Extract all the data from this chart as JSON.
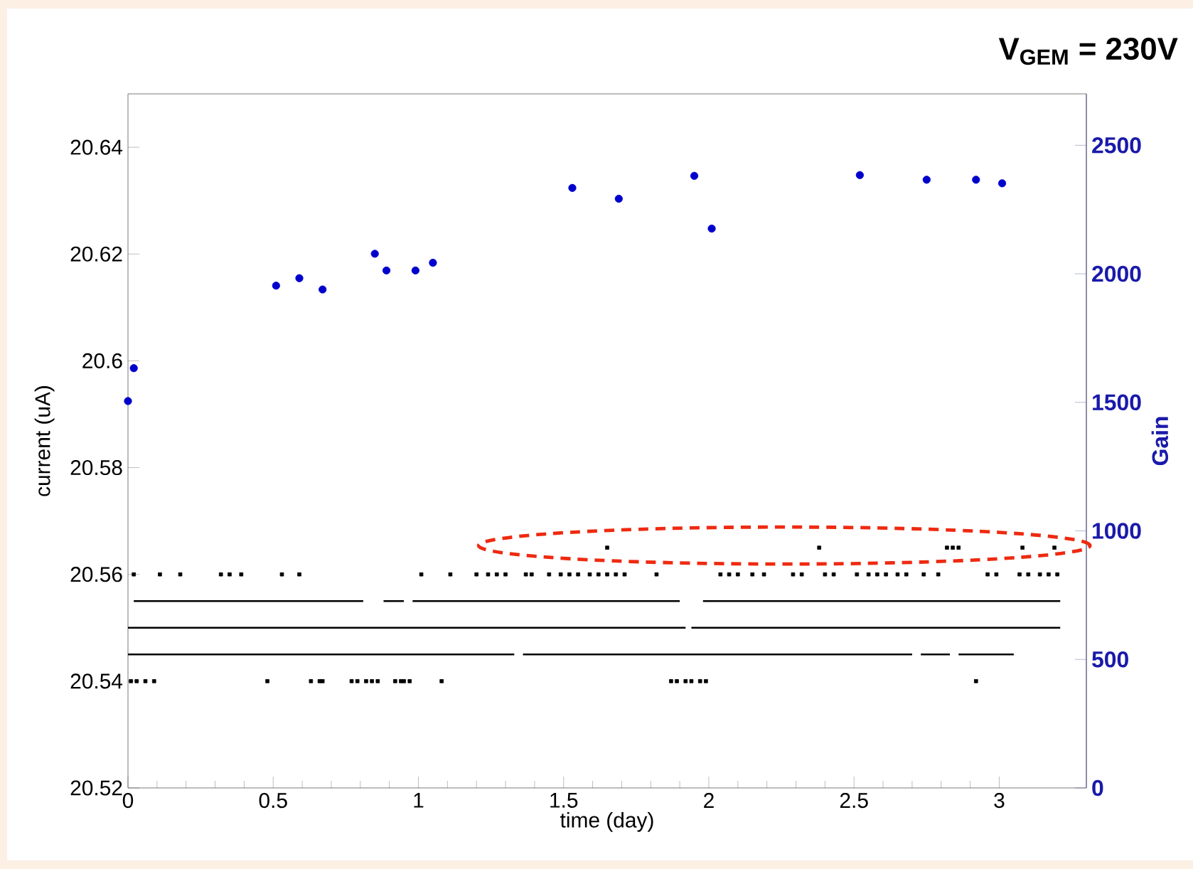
{
  "chart_data": {
    "type": "scatter",
    "title": "V$_{GEM}$ = 230V",
    "xlabel": "time (day)",
    "ylabel": "current (uA)",
    "y2label": "Gain",
    "xlim": [
      0,
      3.3
    ],
    "xticks": [
      0,
      0.5,
      1,
      1.5,
      2,
      2.5,
      3
    ],
    "ylim": [
      20.52,
      20.65
    ],
    "yticks": [
      20.52,
      20.54,
      20.56,
      20.58,
      20.6,
      20.62,
      20.64
    ],
    "y2lim": [
      0,
      2700
    ],
    "y2ticks": [
      0,
      500,
      1000,
      1500,
      2000,
      2500
    ],
    "series": [
      {
        "type": "line",
        "color": "#000000",
        "line_style": "solid",
        "marker": "none",
        "x": [
          0.02,
          0.81,
          0.84,
          0.88,
          0.95,
          0.96,
          0.98,
          1.9,
          1.94,
          1.98,
          3.21
        ],
        "values": [
          20.555,
          20.555,
          null,
          20.555,
          20.555,
          null,
          20.555,
          20.555,
          null,
          20.555,
          20.555
        ]
      },
      {
        "type": "line",
        "color": "#000000",
        "line_style": "solid",
        "marker": "none",
        "x": [
          0,
          1.92,
          1.93,
          1.94,
          3.21
        ],
        "values": [
          20.55,
          20.55,
          null,
          20.55,
          20.55
        ]
      },
      {
        "type": "line",
        "color": "#000000",
        "line_style": "solid",
        "marker": "none",
        "x": [
          0,
          1.33,
          1.34,
          1.36,
          2.7,
          2.71,
          2.73,
          2.83,
          2.84,
          2.86,
          3.05
        ],
        "values": [
          20.545,
          20.545,
          null,
          20.545,
          20.545,
          null,
          20.545,
          20.545,
          null,
          20.545,
          20.545
        ]
      },
      {
        "type": "scatter",
        "color": "#000000",
        "marker": "square",
        "x": [
          0.02,
          0.11,
          0.18,
          0.32,
          0.35,
          0.39,
          0.53,
          0.59,
          1.01,
          1.11,
          1.2,
          1.24,
          1.27,
          1.3,
          1.37,
          1.39,
          1.45,
          1.49,
          1.52,
          1.55,
          1.59,
          1.62,
          1.65,
          1.68,
          1.71,
          1.82,
          2.04,
          2.07,
          2.1,
          2.15,
          2.19,
          2.29,
          2.32,
          2.4,
          2.43,
          2.51,
          2.55,
          2.58,
          2.61,
          2.65,
          2.68,
          2.74,
          2.79,
          2.96,
          2.99,
          3.07,
          3.1,
          3.14,
          3.17,
          3.2
        ],
        "values": [
          20.56,
          20.56,
          20.56,
          20.56,
          20.56,
          20.56,
          20.56,
          20.56,
          20.56,
          20.56,
          20.56,
          20.56,
          20.56,
          20.56,
          20.56,
          20.56,
          20.56,
          20.56,
          20.56,
          20.56,
          20.56,
          20.56,
          20.56,
          20.56,
          20.56,
          20.56,
          20.56,
          20.56,
          20.56,
          20.56,
          20.56,
          20.56,
          20.56,
          20.56,
          20.56,
          20.56,
          20.56,
          20.56,
          20.56,
          20.56,
          20.56,
          20.56,
          20.56,
          20.56,
          20.56,
          20.56,
          20.56,
          20.56,
          20.56,
          20.56
        ]
      },
      {
        "type": "scatter",
        "color": "#000000",
        "marker": "square",
        "x": [
          1.65,
          2.38,
          2.82,
          2.84,
          2.86,
          3.08,
          3.19
        ],
        "values": [
          20.565,
          20.565,
          20.565,
          20.565,
          20.565,
          20.565,
          20.565
        ]
      },
      {
        "type": "scatter",
        "color": "#000000",
        "marker": "square",
        "x": [
          0.01,
          0.03,
          0.06,
          0.09,
          0.48,
          0.63,
          0.66,
          0.67,
          0.77,
          0.79,
          0.82,
          0.84,
          0.86,
          0.92,
          0.94,
          0.95,
          0.97,
          1.08,
          1.87,
          1.89,
          1.92,
          1.94,
          1.97,
          1.99,
          2.92
        ],
        "values": [
          20.54,
          20.54,
          20.54,
          20.54,
          20.54,
          20.54,
          20.54,
          20.54,
          20.54,
          20.54,
          20.54,
          20.54,
          20.54,
          20.54,
          20.54,
          20.54,
          20.54,
          20.54,
          20.54,
          20.54,
          20.54,
          20.54,
          20.54,
          20.54,
          20.54
        ]
      },
      {
        "type": "scatter",
        "color": "#0000cc",
        "marker": "circle",
        "axis": "y2",
        "x": [
          0,
          0.02,
          0.51,
          0.59,
          0.67,
          0.85,
          0.89,
          0.99,
          1.05,
          1.53,
          1.69,
          1.95,
          2.01,
          2.52,
          2.75,
          2.92,
          3.01
        ],
        "values": [
          1505,
          1633,
          1954,
          1983,
          1939,
          2078,
          2013,
          2013,
          2043,
          2334,
          2292,
          2381,
          2176,
          2384,
          2366,
          2366,
          2352
        ]
      }
    ]
  }
}
